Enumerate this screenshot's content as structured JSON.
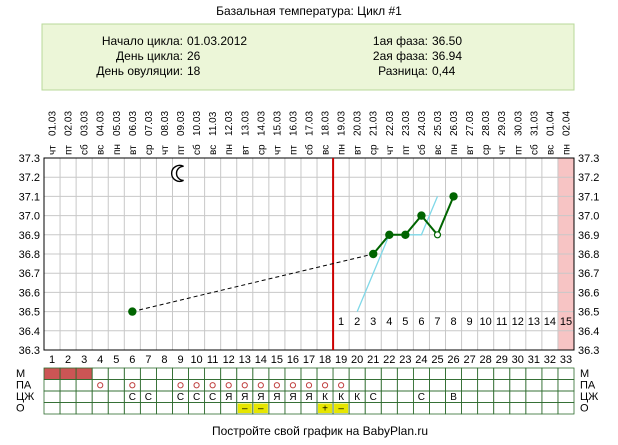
{
  "title": "Базальная температура: Цикл #1",
  "footer": "Постройте свой график на BabyPlan.ru",
  "info": {
    "left": [
      {
        "label": "Начало цикла:",
        "value": "01.03.2012"
      },
      {
        "label": "День цикла:",
        "value": "26"
      },
      {
        "label": "День овуляции:",
        "value": "18"
      }
    ],
    "right": [
      {
        "label": "1ая фаза:",
        "value": "36.50"
      },
      {
        "label": "2ая фаза:",
        "value": "36.94"
      },
      {
        "label": "Разница:",
        "value": "0,44"
      }
    ]
  },
  "icons": {
    "moon": "crescent-moon-icon",
    "moon_day": 9
  },
  "colors": {
    "ovulation_line": "#cc0000",
    "phase_bg": "#ecf6d8",
    "phase_border": "#b8d89a",
    "highlight_col": "#f7c4c4",
    "period_row": "#cc5555",
    "temp_line": "#006400",
    "forecast_line": "#7fd8e8",
    "mucus_marker": "#e6e600"
  },
  "chart_data": {
    "type": "line",
    "x_days": [
      1,
      2,
      3,
      4,
      5,
      6,
      7,
      8,
      9,
      10,
      11,
      12,
      13,
      14,
      15,
      16,
      17,
      18,
      19,
      20,
      21,
      22,
      23,
      24,
      25,
      26,
      27,
      28,
      29,
      30,
      31,
      32,
      33
    ],
    "dates": [
      "01.03",
      "02.03",
      "03.03",
      "04.03",
      "05.03",
      "06.03",
      "07.03",
      "08.03",
      "09.03",
      "10.03",
      "11.03",
      "12.03",
      "13.03",
      "14.03",
      "15.03",
      "16.03",
      "17.03",
      "18.03",
      "19.03",
      "20.03",
      "21.03",
      "22.03",
      "23.03",
      "24.03",
      "25.03",
      "26.03",
      "27.03",
      "28.03",
      "29.03",
      "30.03",
      "31.03",
      "01.04",
      "02.04"
    ],
    "weekdays": [
      "чт",
      "пт",
      "сб",
      "вс",
      "пн",
      "вт",
      "ср",
      "чт",
      "пт",
      "сб",
      "вс",
      "пн",
      "вт",
      "ср",
      "чт",
      "пт",
      "сб",
      "вс",
      "пн",
      "вт",
      "ср",
      "чт",
      "пт",
      "сб",
      "вс",
      "пн",
      "вт",
      "ср",
      "чт",
      "пт",
      "сб",
      "вс",
      "пн"
    ],
    "y_ticks": [
      "37.3",
      "37.2",
      "37.1",
      "37.0",
      "36.9",
      "36.8",
      "36.7",
      "36.6",
      "36.5",
      "36.4",
      "36.3"
    ],
    "ylim": [
      36.3,
      37.3
    ],
    "series": [
      {
        "points": [
          {
            "day": 6,
            "temp": 36.5
          },
          {
            "day": 21,
            "temp": 36.8
          },
          {
            "day": 22,
            "temp": 36.9
          },
          {
            "day": 23,
            "temp": 36.9
          },
          {
            "day": 24,
            "temp": 37.0
          },
          {
            "day": 25,
            "temp": 36.9
          },
          {
            "day": 26,
            "temp": 37.1
          }
        ]
      },
      {
        "points": [
          {
            "day": 20,
            "temp": 36.5
          },
          {
            "day": 22,
            "temp": 36.9
          },
          {
            "day": 24,
            "temp": 36.9
          },
          {
            "day": 25,
            "temp": 37.1
          }
        ]
      }
    ],
    "hollow_point_day": 25,
    "ovulation_day": 18,
    "highlight_day": 33,
    "phase2_labels": [
      "1",
      "2",
      "3",
      "4",
      "5",
      "6",
      "7",
      "8",
      "9",
      "10",
      "11",
      "12",
      "13",
      "14",
      "15"
    ],
    "phase2_start_day": 19,
    "rows": {
      "labels": [
        "М",
        "ПА",
        "ЦЖ",
        "О"
      ],
      "period_days": [
        1,
        2,
        3
      ],
      "pa_days": [
        4,
        6,
        9,
        10,
        11,
        12,
        13,
        14,
        15,
        16,
        17,
        18,
        19
      ],
      "cervical": {
        "6": "С",
        "7": "С",
        "9": "С",
        "10": "С",
        "11": "С",
        "12": "Я",
        "13": "Я",
        "14": "Я",
        "15": "Я",
        "16": "Я",
        "17": "Я",
        "18": "К",
        "19": "К",
        "20": "К",
        "21": "С",
        "24": "С",
        "26": "В"
      },
      "marked_o_days": [
        13,
        14,
        18
      ],
      "marked_o_labels": {
        "13": "–",
        "14": "–",
        "18": "+"
      },
      "marked_o_extra": {
        "19": "–"
      }
    }
  }
}
